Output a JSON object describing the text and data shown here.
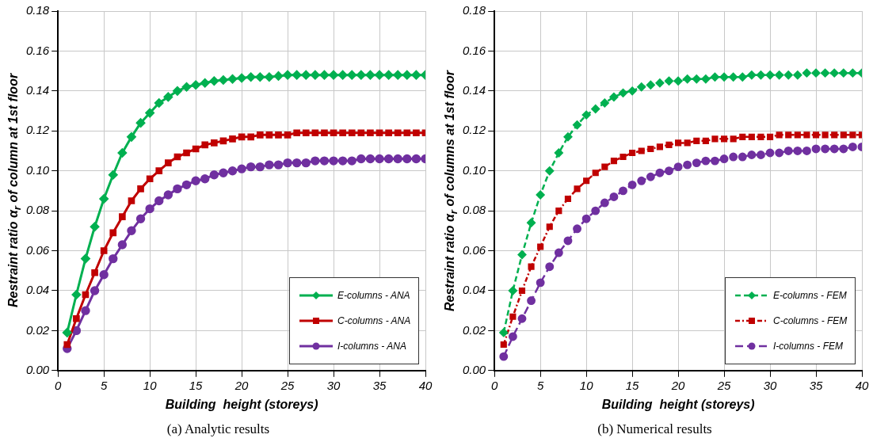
{
  "chart_data": [
    {
      "type": "line",
      "title": "(a) Analytic results",
      "xlabel": "Building  height (storeys)",
      "ylabel": "Restraint ratio α$_{r}$ of column at 1st floor",
      "x": [
        1,
        2,
        3,
        4,
        5,
        6,
        7,
        8,
        9,
        10,
        11,
        12,
        13,
        14,
        15,
        16,
        17,
        18,
        19,
        20,
        21,
        22,
        23,
        24,
        25,
        26,
        27,
        28,
        29,
        30,
        31,
        32,
        33,
        34,
        35,
        36,
        37,
        38,
        39,
        40
      ],
      "xlim": [
        0,
        40
      ],
      "xticks": [
        0,
        5,
        10,
        15,
        20,
        25,
        30,
        35,
        40
      ],
      "ylim": [
        0,
        0.18
      ],
      "yticks": [
        {
          "value": 0,
          "label": "0.00"
        },
        {
          "value": 0.02,
          "label": "0.02"
        },
        {
          "value": 0.04,
          "label": "0.04"
        },
        {
          "value": 0.06,
          "label": "0.06"
        },
        {
          "value": 0.08,
          "label": "0.08"
        },
        {
          "value": 0.1,
          "label": "0.10"
        },
        {
          "value": 0.12,
          "label": "0.12"
        },
        {
          "value": 0.14,
          "label": "0.14"
        },
        {
          "value": 0.16,
          "label": "0.16"
        },
        {
          "value": 0.18,
          "label": "0.18"
        }
      ],
      "grid": true,
      "legend": "bottom right",
      "line_style": "solid",
      "series": [
        {
          "name": "E-columns - ANA",
          "color": "#00b050",
          "marker": "diamond",
          "values": [
            0.019,
            0.038,
            0.056,
            0.072,
            0.086,
            0.098,
            0.109,
            0.117,
            0.124,
            0.129,
            0.134,
            0.137,
            0.14,
            0.142,
            0.143,
            0.144,
            0.145,
            0.1455,
            0.146,
            0.1465,
            0.147,
            0.147,
            0.147,
            0.1475,
            0.148,
            0.148,
            0.148,
            0.148,
            0.148,
            0.148,
            0.148,
            0.148,
            0.148,
            0.148,
            0.148,
            0.148,
            0.148,
            0.148,
            0.148,
            0.148
          ]
        },
        {
          "name": "C-columns - ANA",
          "color": "#c00000",
          "marker": "square",
          "values": [
            0.013,
            0.026,
            0.038,
            0.049,
            0.06,
            0.069,
            0.077,
            0.085,
            0.091,
            0.096,
            0.1,
            0.104,
            0.107,
            0.109,
            0.111,
            0.113,
            0.114,
            0.115,
            0.116,
            0.117,
            0.117,
            0.118,
            0.118,
            0.118,
            0.118,
            0.119,
            0.119,
            0.119,
            0.119,
            0.119,
            0.119,
            0.119,
            0.119,
            0.119,
            0.119,
            0.119,
            0.119,
            0.119,
            0.119,
            0.119
          ]
        },
        {
          "name": "I-columns - ANA",
          "color": "#7030a0",
          "marker": "circle",
          "values": [
            0.011,
            0.02,
            0.03,
            0.04,
            0.048,
            0.056,
            0.063,
            0.07,
            0.076,
            0.081,
            0.085,
            0.088,
            0.091,
            0.093,
            0.095,
            0.096,
            0.098,
            0.099,
            0.1,
            0.101,
            0.102,
            0.102,
            0.103,
            0.103,
            0.104,
            0.104,
            0.104,
            0.105,
            0.105,
            0.105,
            0.105,
            0.105,
            0.106,
            0.106,
            0.106,
            0.106,
            0.106,
            0.106,
            0.106,
            0.106
          ]
        }
      ]
    },
    {
      "type": "line",
      "title": "(b) Numerical results",
      "xlabel": "Building  height (storeys)",
      "ylabel": "Restraint ratio α$_{r}$ of columns at 1st floor",
      "x": [
        1,
        2,
        3,
        4,
        5,
        6,
        7,
        8,
        9,
        10,
        11,
        12,
        13,
        14,
        15,
        16,
        17,
        18,
        19,
        20,
        21,
        22,
        23,
        24,
        25,
        26,
        27,
        28,
        29,
        30,
        31,
        32,
        33,
        34,
        35,
        36,
        37,
        38,
        39,
        40
      ],
      "xlim": [
        0,
        40
      ],
      "xticks": [
        0,
        5,
        10,
        15,
        20,
        25,
        30,
        35,
        40
      ],
      "ylim": [
        0,
        0.18
      ],
      "yticks": [
        {
          "value": 0,
          "label": "0.00"
        },
        {
          "value": 0.02,
          "label": "0.02"
        },
        {
          "value": 0.04,
          "label": "0.04"
        },
        {
          "value": 0.06,
          "label": "0.06"
        },
        {
          "value": 0.08,
          "label": "0.08"
        },
        {
          "value": 0.1,
          "label": "0.10"
        },
        {
          "value": 0.12,
          "label": "0.12"
        },
        {
          "value": 0.14,
          "label": "0.14"
        },
        {
          "value": 0.16,
          "label": "0.16"
        },
        {
          "value": 0.18,
          "label": "0.18"
        }
      ],
      "grid": true,
      "legend": "bottom right",
      "line_style": "dashed",
      "series": [
        {
          "name": "E-columns - FEM",
          "color": "#00b050",
          "marker": "diamond",
          "values": [
            0.019,
            0.04,
            0.058,
            0.074,
            0.088,
            0.1,
            0.109,
            0.117,
            0.123,
            0.128,
            0.131,
            0.134,
            0.137,
            0.139,
            0.14,
            0.142,
            0.143,
            0.144,
            0.145,
            0.145,
            0.146,
            0.146,
            0.146,
            0.147,
            0.147,
            0.147,
            0.147,
            0.148,
            0.148,
            0.148,
            0.148,
            0.148,
            0.148,
            0.149,
            0.149,
            0.149,
            0.149,
            0.149,
            0.149,
            0.149
          ]
        },
        {
          "name": "C-columns - FEM",
          "color": "#c00000",
          "marker": "square",
          "values": [
            0.013,
            0.027,
            0.04,
            0.052,
            0.062,
            0.072,
            0.08,
            0.086,
            0.091,
            0.095,
            0.099,
            0.102,
            0.105,
            0.107,
            0.109,
            0.11,
            0.111,
            0.112,
            0.113,
            0.114,
            0.114,
            0.115,
            0.115,
            0.116,
            0.116,
            0.116,
            0.117,
            0.117,
            0.117,
            0.117,
            0.118,
            0.118,
            0.118,
            0.118,
            0.118,
            0.118,
            0.118,
            0.118,
            0.118,
            0.118
          ]
        },
        {
          "name": "I-columns - FEM",
          "color": "#7030a0",
          "marker": "circle",
          "values": [
            0.007,
            0.017,
            0.026,
            0.035,
            0.044,
            0.052,
            0.059,
            0.065,
            0.071,
            0.076,
            0.08,
            0.084,
            0.087,
            0.09,
            0.093,
            0.095,
            0.097,
            0.099,
            0.1,
            0.102,
            0.103,
            0.104,
            0.105,
            0.105,
            0.106,
            0.107,
            0.107,
            0.108,
            0.108,
            0.109,
            0.109,
            0.11,
            0.11,
            0.11,
            0.111,
            0.111,
            0.111,
            0.111,
            0.112,
            0.112
          ]
        }
      ]
    }
  ]
}
